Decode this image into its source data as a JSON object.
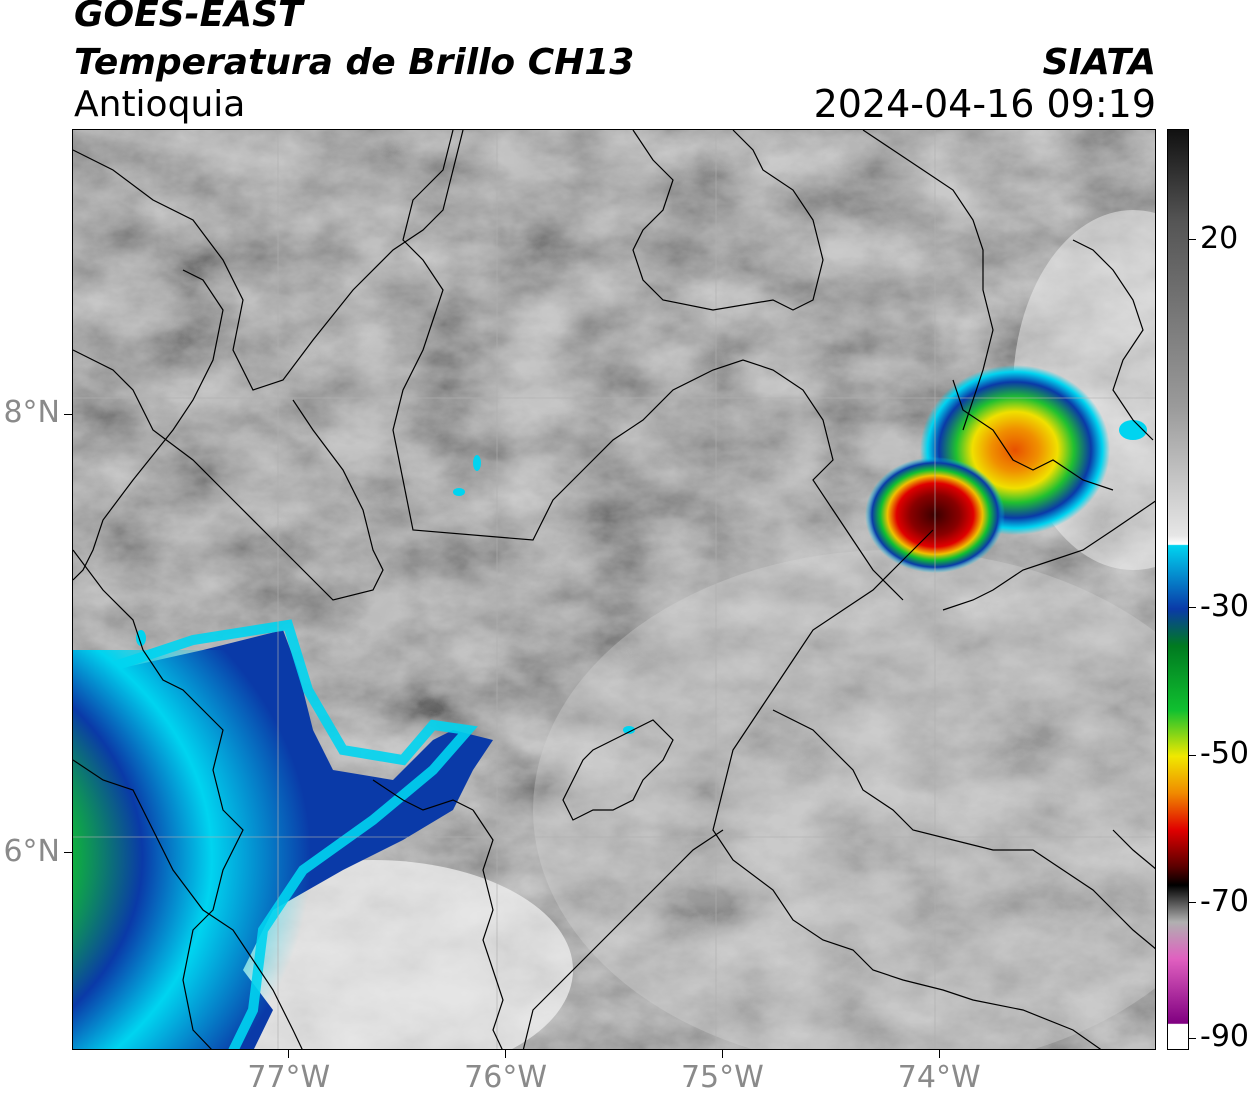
{
  "header": {
    "satellite": "GOES-EAST",
    "product": "Temperatura de Brillo CH13",
    "region": "Antioquia",
    "agency": "SIATA",
    "datetime": "2024-04-16 09:19"
  },
  "map": {
    "lon_range": [
      -78.0,
      -73.0
    ],
    "lat_range": [
      5.1,
      9.3
    ],
    "lon_ticks": [
      {
        "value": -77,
        "label": "77°W"
      },
      {
        "value": -76,
        "label": "76°W"
      },
      {
        "value": -75,
        "label": "75°W"
      },
      {
        "value": -74,
        "label": "74°W"
      }
    ],
    "lat_ticks": [
      {
        "value": 8,
        "label": "8°N"
      },
      {
        "value": 6,
        "label": "6°N"
      }
    ],
    "gridlines": true
  },
  "colorbar": {
    "range": [
      -90,
      35
    ],
    "ticks": [
      {
        "value": 20,
        "label": "20"
      },
      {
        "value": -30,
        "label": "-30"
      },
      {
        "value": -50,
        "label": "-50"
      },
      {
        "value": -70,
        "label": "-70"
      },
      {
        "value": -90,
        "label": "-90"
      }
    ],
    "colors": {
      "cyan": "#00d4f0",
      "blue": "#0a3aa8",
      "green": "#10c030",
      "yellow": "#f0e800",
      "orange": "#f08a00",
      "red": "#e00000",
      "dark_red": "#5a0000",
      "magenta": "#d040c0"
    }
  }
}
